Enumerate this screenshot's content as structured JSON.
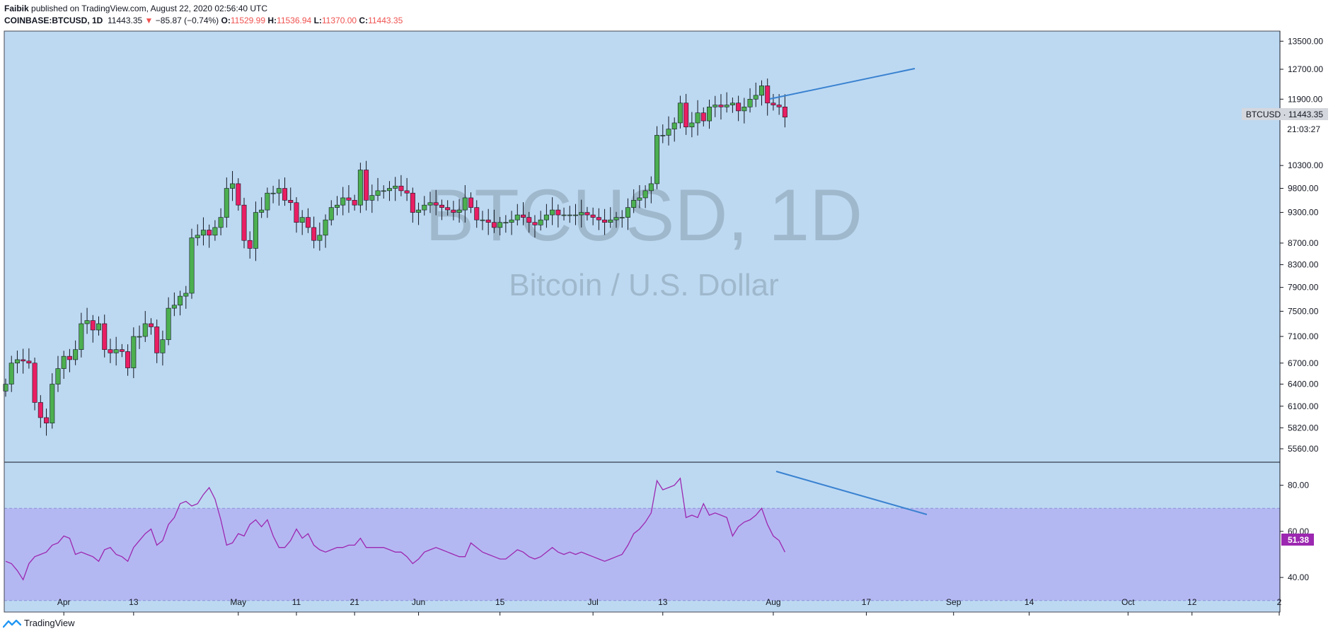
{
  "header": {
    "publisher": "Faibik",
    "published_text": "published on TradingView.com, August 22, 2020 02:56:40 UTC",
    "symbol": "COINBASE:BTCUSD, 1D",
    "last": "11443.35",
    "change": "−85.87 (−0.74%)",
    "open_label": "O:",
    "open": "11529.99",
    "high_label": "H:",
    "high": "11536.94",
    "low_label": "L:",
    "low": "11370.00",
    "close_label": "C:",
    "close": "11443.35"
  },
  "watermark": {
    "symbol": "BTCUSD, 1D",
    "description": "Bitcoin / U.S. Dollar"
  },
  "price_axis": {
    "ticks": [
      "13500.00",
      "12700.00",
      "11900.00",
      "10300.00",
      "9800.00",
      "9300.00",
      "8700.00",
      "8300.00",
      "7900.00",
      "7500.00",
      "7100.00",
      "6700.00",
      "6400.00",
      "6100.00",
      "5820.00",
      "5560.00"
    ],
    "last_label": "BTCUSD · 11443.35",
    "countdown": "21:03:27"
  },
  "rsi_axis": {
    "ticks": [
      "80.00",
      "60.00",
      "40.00"
    ],
    "value_label": "51.38"
  },
  "time_axis": {
    "ticks": [
      "Apr",
      "13",
      "May",
      "11",
      "21",
      "Jun",
      "15",
      "Jul",
      "13",
      "Aug",
      "17",
      "Sep",
      "14",
      "Oct",
      "12",
      "2"
    ]
  },
  "footer": {
    "brand": "TradingView"
  },
  "colors": {
    "background": "#bdd9f2",
    "up": "#4caf50",
    "down": "#e91e63",
    "rsi": "#9c27b0",
    "band": "#b4b8f2",
    "trend": "#3a82d0"
  },
  "chart_data": [
    {
      "type": "candlestick",
      "title": "COINBASE:BTCUSD, 1D",
      "x_range": [
        "2020-03-22",
        "2020-10-27"
      ],
      "y_axis": "log",
      "ylim": [
        5400,
        13800
      ],
      "closes": [
        6400,
        6700,
        6750,
        6730,
        6700,
        6150,
        5950,
        5880,
        6400,
        6620,
        6800,
        6750,
        6900,
        7300,
        7350,
        7200,
        7300,
        6900,
        6850,
        6900,
        6870,
        6630,
        7100,
        7100,
        7300,
        7250,
        6850,
        7050,
        7550,
        7600,
        7750,
        7800,
        8800,
        8850,
        8950,
        8850,
        9000,
        9200,
        9800,
        9900,
        9450,
        8750,
        8600,
        9300,
        9350,
        9700,
        9700,
        9800,
        9550,
        9500,
        9100,
        9200,
        9000,
        8750,
        8850,
        9150,
        9400,
        9450,
        9600,
        9550,
        9450,
        10200,
        9550,
        9650,
        9750,
        9750,
        9800,
        9850,
        9750,
        9700,
        9300,
        9350,
        9450,
        9500,
        9450,
        9400,
        9350,
        9300,
        9350,
        9600,
        9400,
        9150,
        9150,
        9100,
        9000,
        9100,
        9100,
        9150,
        9250,
        9200,
        9100,
        9050,
        9150,
        9250,
        9350,
        9250,
        9250,
        9250,
        9250,
        9300,
        9250,
        9200,
        9150,
        9100,
        9150,
        9200,
        9200,
        9400,
        9550,
        9600,
        9750,
        9900,
        11000,
        11000,
        11150,
        11300,
        11800,
        11200,
        11300,
        11550,
        11350,
        11700,
        11750,
        11700,
        11750,
        11800,
        11600,
        11700,
        11900,
        12000,
        12250,
        11800,
        11750,
        11700,
        11443
      ]
    },
    {
      "type": "line",
      "title": "RSI",
      "ylim": [
        25,
        90
      ],
      "bands": [
        30,
        70
      ],
      "values": [
        47,
        46,
        43,
        39,
        46,
        49,
        50,
        51,
        54,
        55,
        58,
        57,
        50,
        51,
        50,
        49,
        47,
        52,
        53,
        50,
        49,
        47,
        53,
        56,
        59,
        61,
        54,
        56,
        63,
        66,
        72,
        73,
        71,
        72,
        76,
        79,
        74,
        65,
        54,
        55,
        59,
        58,
        63,
        65,
        62,
        65,
        58,
        53,
        53,
        56,
        61,
        57,
        59,
        54,
        52,
        51,
        52,
        53,
        53,
        54,
        54,
        57,
        53,
        53,
        53,
        53,
        52,
        51,
        51,
        49,
        46,
        48,
        51,
        52,
        53,
        52,
        51,
        50,
        49,
        49,
        55,
        53,
        51,
        50,
        49,
        48,
        48,
        50,
        52,
        51,
        49,
        48,
        49,
        51,
        53,
        51,
        50,
        51,
        50,
        51,
        50,
        49,
        48,
        47,
        48,
        49,
        50,
        54,
        59,
        61,
        64,
        68,
        82,
        78,
        79,
        80,
        83,
        66,
        67,
        66,
        72,
        67,
        68,
        67,
        66,
        58,
        62,
        64,
        65,
        67,
        70,
        63,
        58,
        56,
        51
      ]
    }
  ]
}
